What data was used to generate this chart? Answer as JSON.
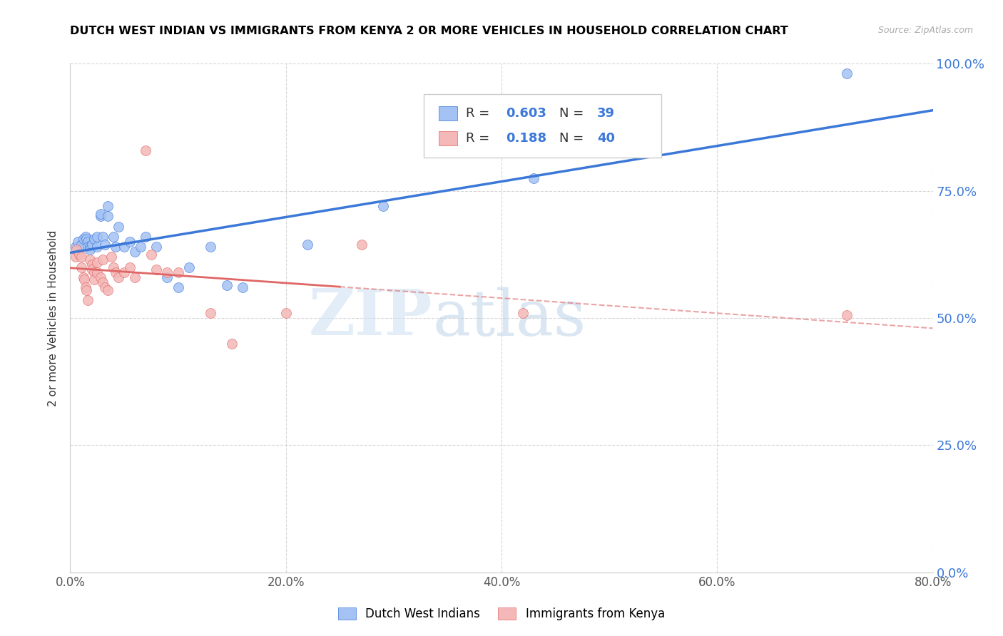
{
  "title": "DUTCH WEST INDIAN VS IMMIGRANTS FROM KENYA 2 OR MORE VEHICLES IN HOUSEHOLD CORRELATION CHART",
  "source": "Source: ZipAtlas.com",
  "xlabel_ticks": [
    "0.0%",
    "20.0%",
    "40.0%",
    "60.0%",
    "80.0%"
  ],
  "ylabel_ticks": [
    "0.0%",
    "25.0%",
    "50.0%",
    "75.0%",
    "100.0%"
  ],
  "xlabel_tick_vals": [
    0.0,
    0.2,
    0.4,
    0.6,
    0.8
  ],
  "ylabel_tick_vals": [
    0.0,
    0.25,
    0.5,
    0.75,
    1.0
  ],
  "xlim": [
    0.0,
    0.8
  ],
  "ylim": [
    0.0,
    1.0
  ],
  "ylabel": "2 or more Vehicles in Household",
  "blue_R": "0.603",
  "blue_N": "39",
  "pink_R": "0.188",
  "pink_N": "40",
  "blue_color": "#a4c2f4",
  "pink_color": "#f4b8b8",
  "blue_line_color": "#3c78d8",
  "pink_line_color": "#e06666",
  "pink_dash_color": "#e06666",
  "watermark_zip": "ZIP",
  "watermark_atlas": "atlas",
  "blue_x": [
    0.005,
    0.007,
    0.01,
    0.012,
    0.014,
    0.015,
    0.016,
    0.016,
    0.018,
    0.018,
    0.02,
    0.022,
    0.025,
    0.025,
    0.028,
    0.028,
    0.03,
    0.032,
    0.035,
    0.035,
    0.04,
    0.042,
    0.045,
    0.05,
    0.055,
    0.06,
    0.065,
    0.07,
    0.08,
    0.09,
    0.1,
    0.11,
    0.13,
    0.145,
    0.16,
    0.22,
    0.29,
    0.43,
    0.72
  ],
  "blue_y": [
    0.64,
    0.65,
    0.645,
    0.655,
    0.66,
    0.655,
    0.65,
    0.64,
    0.64,
    0.635,
    0.645,
    0.655,
    0.66,
    0.64,
    0.7,
    0.705,
    0.66,
    0.645,
    0.7,
    0.72,
    0.66,
    0.64,
    0.68,
    0.64,
    0.65,
    0.63,
    0.64,
    0.66,
    0.64,
    0.58,
    0.56,
    0.6,
    0.64,
    0.565,
    0.56,
    0.645,
    0.72,
    0.775,
    0.98
  ],
  "pink_x": [
    0.005,
    0.006,
    0.008,
    0.01,
    0.01,
    0.012,
    0.013,
    0.014,
    0.015,
    0.016,
    0.018,
    0.02,
    0.02,
    0.022,
    0.022,
    0.025,
    0.025,
    0.028,
    0.03,
    0.03,
    0.032,
    0.035,
    0.038,
    0.04,
    0.042,
    0.045,
    0.05,
    0.055,
    0.06,
    0.07,
    0.075,
    0.08,
    0.09,
    0.1,
    0.13,
    0.15,
    0.2,
    0.27,
    0.42,
    0.72
  ],
  "pink_y": [
    0.62,
    0.635,
    0.625,
    0.62,
    0.6,
    0.58,
    0.575,
    0.56,
    0.555,
    0.535,
    0.615,
    0.605,
    0.595,
    0.59,
    0.575,
    0.61,
    0.59,
    0.58,
    0.615,
    0.57,
    0.56,
    0.555,
    0.62,
    0.6,
    0.59,
    0.58,
    0.59,
    0.6,
    0.58,
    0.83,
    0.625,
    0.595,
    0.59,
    0.59,
    0.51,
    0.45,
    0.51,
    0.645,
    0.51,
    0.505
  ]
}
